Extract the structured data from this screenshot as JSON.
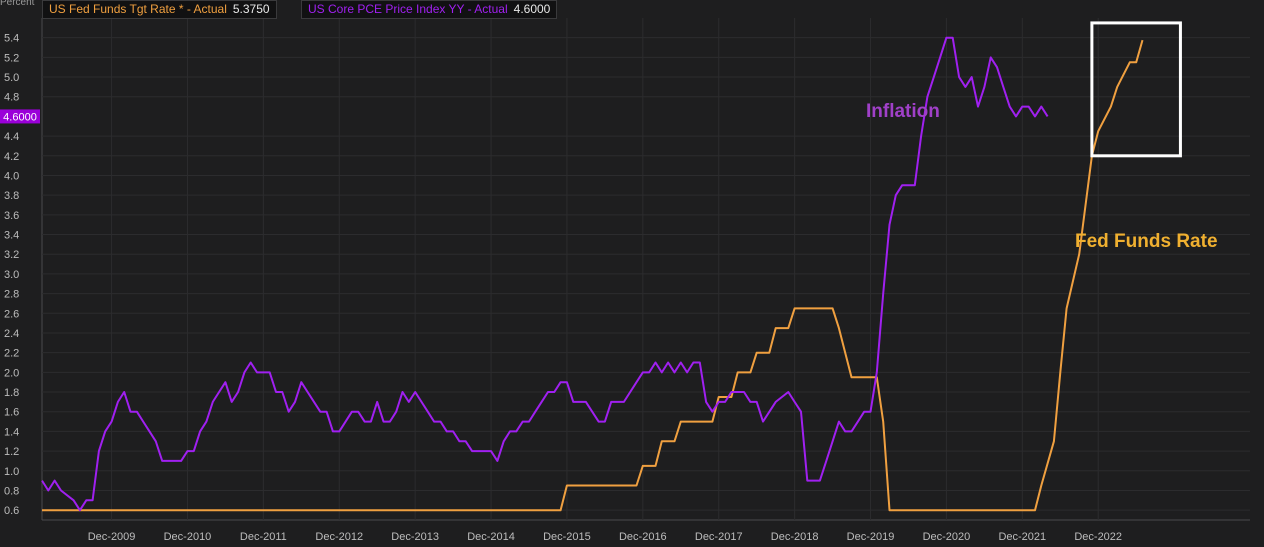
{
  "chart_data": {
    "type": "line",
    "unit_label": "Percent",
    "ylim": [
      0.5,
      5.6
    ],
    "yticks": [
      0.6,
      0.8,
      1.0,
      1.2,
      1.4,
      1.6,
      1.8,
      2.0,
      2.2,
      2.4,
      2.6,
      2.8,
      3.0,
      3.2,
      3.4,
      3.6,
      3.8,
      4.0,
      4.2,
      4.4,
      4.8,
      5.0,
      5.2,
      5.4
    ],
    "xticks": [
      "Dec-2009",
      "Dec-2010",
      "Dec-2011",
      "Dec-2012",
      "Dec-2013",
      "Dec-2014",
      "Dec-2015",
      "Dec-2016",
      "Dec-2017",
      "Dec-2018",
      "Dec-2019",
      "Dec-2020",
      "Dec-2021",
      "Dec-2022"
    ],
    "xlim": [
      "2009-01",
      "2024-12"
    ],
    "grid": true,
    "current_value_marker": {
      "label": "4.6000",
      "value": 4.6,
      "color": "#9b00d9"
    },
    "series": [
      {
        "name": "US Fed Funds Tgt Rate * - Actual",
        "latest": "5.3750",
        "color": "#f0a040",
        "points": [
          [
            "2009-01",
            0.6
          ],
          [
            "2015-11",
            0.6
          ],
          [
            "2015-12",
            0.85
          ],
          [
            "2016-11",
            0.85
          ],
          [
            "2016-12",
            1.05
          ],
          [
            "2017-02",
            1.05
          ],
          [
            "2017-03",
            1.3
          ],
          [
            "2017-05",
            1.3
          ],
          [
            "2017-06",
            1.5
          ],
          [
            "2017-11",
            1.5
          ],
          [
            "2017-12",
            1.75
          ],
          [
            "2018-02",
            1.75
          ],
          [
            "2018-03",
            2.0
          ],
          [
            "2018-05",
            2.0
          ],
          [
            "2018-06",
            2.2
          ],
          [
            "2018-08",
            2.2
          ],
          [
            "2018-09",
            2.45
          ],
          [
            "2018-11",
            2.45
          ],
          [
            "2018-12",
            2.65
          ],
          [
            "2019-06",
            2.65
          ],
          [
            "2019-07",
            2.45
          ],
          [
            "2019-08",
            2.2
          ],
          [
            "2019-09",
            1.95
          ],
          [
            "2019-10",
            1.95
          ],
          [
            "2020-01",
            1.95
          ],
          [
            "2020-02",
            1.5
          ],
          [
            "2020-03",
            0.6
          ],
          [
            "2022-02",
            0.6
          ],
          [
            "2022-03",
            0.85
          ],
          [
            "2022-05",
            1.3
          ],
          [
            "2022-06",
            2.0
          ],
          [
            "2022-07",
            2.65
          ],
          [
            "2022-09",
            3.2
          ],
          [
            "2022-11",
            4.2
          ],
          [
            "2022-12",
            4.45
          ],
          [
            "2023-02",
            4.7
          ],
          [
            "2023-03",
            4.9
          ],
          [
            "2023-05",
            5.15
          ],
          [
            "2023-06",
            5.15
          ],
          [
            "2023-07",
            5.375
          ]
        ]
      },
      {
        "name": "US Core PCE Price Index YY - Actual",
        "latest": "4.6000",
        "color": "#a020f0",
        "points": [
          [
            "2009-01",
            0.9
          ],
          [
            "2009-02",
            0.8
          ],
          [
            "2009-03",
            0.9
          ],
          [
            "2009-04",
            0.8
          ],
          [
            "2009-06",
            0.7
          ],
          [
            "2009-07",
            0.6
          ],
          [
            "2009-08",
            0.7
          ],
          [
            "2009-09",
            0.7
          ],
          [
            "2009-10",
            1.2
          ],
          [
            "2009-11",
            1.4
          ],
          [
            "2009-12",
            1.5
          ],
          [
            "2010-01",
            1.7
          ],
          [
            "2010-02",
            1.8
          ],
          [
            "2010-03",
            1.6
          ],
          [
            "2010-04",
            1.6
          ],
          [
            "2010-05",
            1.5
          ],
          [
            "2010-06",
            1.4
          ],
          [
            "2010-07",
            1.3
          ],
          [
            "2010-08",
            1.1
          ],
          [
            "2010-09",
            1.1
          ],
          [
            "2010-10",
            1.1
          ],
          [
            "2010-11",
            1.1
          ],
          [
            "2010-12",
            1.2
          ],
          [
            "2011-01",
            1.2
          ],
          [
            "2011-02",
            1.4
          ],
          [
            "2011-03",
            1.5
          ],
          [
            "2011-04",
            1.7
          ],
          [
            "2011-05",
            1.8
          ],
          [
            "2011-06",
            1.9
          ],
          [
            "2011-07",
            1.7
          ],
          [
            "2011-08",
            1.8
          ],
          [
            "2011-09",
            2.0
          ],
          [
            "2011-10",
            2.1
          ],
          [
            "2011-11",
            2.0
          ],
          [
            "2011-12",
            2.0
          ],
          [
            "2012-01",
            2.0
          ],
          [
            "2012-02",
            1.8
          ],
          [
            "2012-03",
            1.8
          ],
          [
            "2012-04",
            1.6
          ],
          [
            "2012-05",
            1.7
          ],
          [
            "2012-06",
            1.9
          ],
          [
            "2012-07",
            1.8
          ],
          [
            "2012-08",
            1.7
          ],
          [
            "2012-09",
            1.6
          ],
          [
            "2012-10",
            1.6
          ],
          [
            "2012-11",
            1.4
          ],
          [
            "2012-12",
            1.4
          ],
          [
            "2013-01",
            1.5
          ],
          [
            "2013-02",
            1.6
          ],
          [
            "2013-03",
            1.6
          ],
          [
            "2013-04",
            1.5
          ],
          [
            "2013-05",
            1.5
          ],
          [
            "2013-06",
            1.7
          ],
          [
            "2013-07",
            1.5
          ],
          [
            "2013-08",
            1.5
          ],
          [
            "2013-09",
            1.6
          ],
          [
            "2013-10",
            1.8
          ],
          [
            "2013-11",
            1.7
          ],
          [
            "2013-12",
            1.8
          ],
          [
            "2014-01",
            1.7
          ],
          [
            "2014-02",
            1.6
          ],
          [
            "2014-03",
            1.5
          ],
          [
            "2014-04",
            1.5
          ],
          [
            "2014-05",
            1.4
          ],
          [
            "2014-06",
            1.4
          ],
          [
            "2014-07",
            1.3
          ],
          [
            "2014-08",
            1.3
          ],
          [
            "2014-09",
            1.2
          ],
          [
            "2014-10",
            1.2
          ],
          [
            "2014-11",
            1.2
          ],
          [
            "2014-12",
            1.2
          ],
          [
            "2015-01",
            1.1
          ],
          [
            "2015-02",
            1.3
          ],
          [
            "2015-03",
            1.4
          ],
          [
            "2015-04",
            1.4
          ],
          [
            "2015-05",
            1.5
          ],
          [
            "2015-06",
            1.5
          ],
          [
            "2015-07",
            1.6
          ],
          [
            "2015-08",
            1.7
          ],
          [
            "2015-09",
            1.8
          ],
          [
            "2015-10",
            1.8
          ],
          [
            "2015-11",
            1.9
          ],
          [
            "2015-12",
            1.9
          ],
          [
            "2016-01",
            1.7
          ],
          [
            "2016-02",
            1.7
          ],
          [
            "2016-03",
            1.7
          ],
          [
            "2016-04",
            1.6
          ],
          [
            "2016-05",
            1.5
          ],
          [
            "2016-06",
            1.5
          ],
          [
            "2016-07",
            1.7
          ],
          [
            "2016-08",
            1.7
          ],
          [
            "2016-09",
            1.7
          ],
          [
            "2016-10",
            1.8
          ],
          [
            "2016-11",
            1.9
          ],
          [
            "2016-12",
            2.0
          ],
          [
            "2017-01",
            2.0
          ],
          [
            "2017-02",
            2.1
          ],
          [
            "2017-03",
            2.0
          ],
          [
            "2017-04",
            2.1
          ],
          [
            "2017-05",
            2.0
          ],
          [
            "2017-06",
            2.1
          ],
          [
            "2017-07",
            2.0
          ],
          [
            "2017-08",
            2.1
          ],
          [
            "2017-09",
            2.1
          ],
          [
            "2017-10",
            1.7
          ],
          [
            "2017-11",
            1.6
          ],
          [
            "2017-12",
            1.7
          ],
          [
            "2018-01",
            1.7
          ],
          [
            "2018-02",
            1.8
          ],
          [
            "2018-03",
            1.8
          ],
          [
            "2018-04",
            1.8
          ],
          [
            "2018-05",
            1.7
          ],
          [
            "2018-06",
            1.7
          ],
          [
            "2018-07",
            1.5
          ],
          [
            "2018-09",
            1.7
          ],
          [
            "2018-11",
            1.8
          ],
          [
            "2018-12",
            1.7
          ],
          [
            "2019-01",
            1.6
          ],
          [
            "2019-02",
            0.9
          ],
          [
            "2019-03",
            0.9
          ],
          [
            "2019-04",
            0.9
          ],
          [
            "2019-05",
            1.1
          ],
          [
            "2019-06",
            1.3
          ],
          [
            "2019-07",
            1.5
          ],
          [
            "2019-08",
            1.4
          ],
          [
            "2019-09",
            1.4
          ],
          [
            "2019-10",
            1.5
          ],
          [
            "2019-11",
            1.6
          ],
          [
            "2019-12",
            1.6
          ],
          [
            "2020-01",
            2.0
          ],
          [
            "2020-02",
            2.8
          ],
          [
            "2020-03",
            3.5
          ],
          [
            "2020-04",
            3.8
          ],
          [
            "2020-05",
            3.9
          ],
          [
            "2020-06",
            3.9
          ],
          [
            "2020-07",
            3.9
          ],
          [
            "2020-08",
            4.4
          ],
          [
            "2020-09",
            4.8
          ],
          [
            "2020-10",
            5.0
          ],
          [
            "2020-11",
            5.2
          ],
          [
            "2020-12",
            5.4
          ],
          [
            "2021-01",
            5.4
          ],
          [
            "2021-02",
            5.0
          ],
          [
            "2021-03",
            4.9
          ],
          [
            "2021-04",
            5.0
          ],
          [
            "2021-05",
            4.7
          ],
          [
            "2021-06",
            4.9
          ],
          [
            "2021-07",
            5.2
          ],
          [
            "2021-08",
            5.1
          ],
          [
            "2021-09",
            4.9
          ],
          [
            "2021-10",
            4.7
          ],
          [
            "2021-11",
            4.6
          ],
          [
            "2021-12",
            4.7
          ],
          [
            "2022-01",
            4.7
          ],
          [
            "2022-02",
            4.6
          ],
          [
            "2022-03",
            4.7
          ],
          [
            "2022-04",
            4.6
          ]
        ]
      }
    ],
    "annotations": [
      {
        "text": "Inflation",
        "color": "#a040c8"
      },
      {
        "text": "Fed Funds Rate",
        "color": "#f0b030"
      }
    ],
    "highlight_box": {
      "x": [
        "2022-11",
        "2024-01"
      ],
      "y": [
        4.2,
        5.55
      ]
    }
  }
}
